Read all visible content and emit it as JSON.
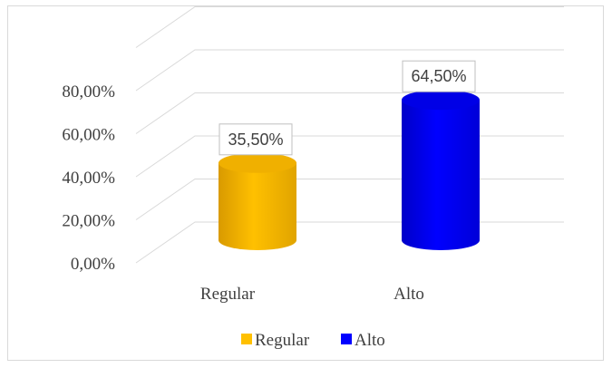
{
  "chart_data": {
    "type": "bar",
    "style": "3d-cylinder",
    "categories": [
      "Regular",
      "Alto"
    ],
    "values": [
      35.5,
      64.5
    ],
    "data_labels": [
      "35,50%",
      "64,50%"
    ],
    "y_ticks": [
      "0,00%",
      "20,00%",
      "40,00%",
      "60,00%",
      "80,00%"
    ],
    "ylim": [
      0,
      100
    ],
    "grid": true,
    "legend_position": "bottom",
    "legend": [
      {
        "name": "Regular",
        "color": "#ffc000"
      },
      {
        "name": "Alto",
        "color": "#0000ff"
      }
    ],
    "colors": {
      "Regular": "#ffc000",
      "Alto": "#0000ff"
    }
  }
}
